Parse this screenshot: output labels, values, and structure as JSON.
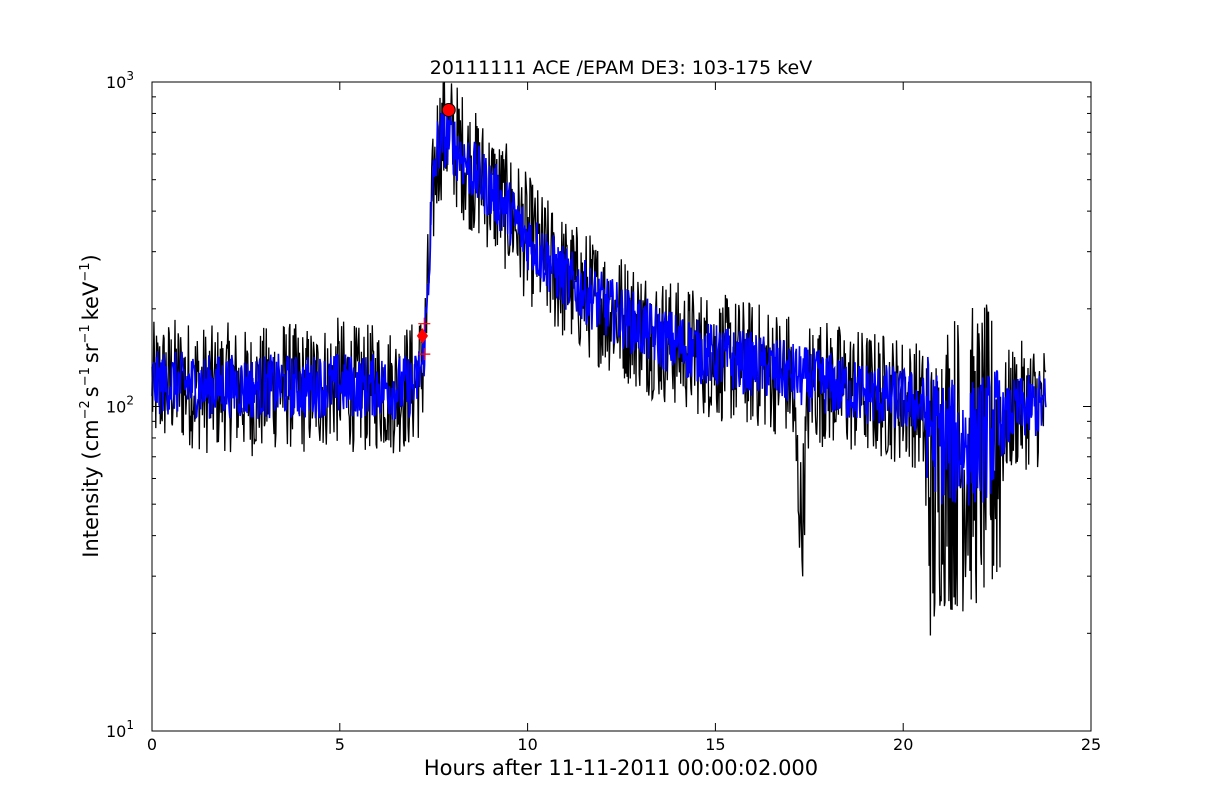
{
  "chart_data": {
    "type": "line",
    "title": "20111111 ACE /EPAM DE3: 103-175 keV",
    "xlabel": "Hours after 11-11-2011 00:00:02.000",
    "ylabel": {
      "prefix": "Intensity (cm",
      "exp1": "−2",
      "mid1": "s",
      "exp2": "−1",
      "mid2": "sr",
      "exp3": "−1",
      "mid3": "keV",
      "exp4": "−1",
      "suffix": ")"
    },
    "xlim": [
      0,
      25
    ],
    "ylim": [
      10,
      1000
    ],
    "yscale": "log",
    "grid": false,
    "legend": "none",
    "x_ticks": [
      0,
      5,
      10,
      15,
      20,
      25
    ],
    "x_tick_labels": [
      "0",
      "5",
      "10",
      "15",
      "20",
      "25"
    ],
    "y_ticks": [
      10,
      100,
      1000
    ],
    "y_tick_labels": {
      "base": "10",
      "exponents": [
        "1",
        "2",
        "3"
      ]
    },
    "series": [
      {
        "color": "#000000",
        "style": "raw",
        "x": [
          0.0,
          0.5,
          1.0,
          1.5,
          2.0,
          2.5,
          3.0,
          3.5,
          4.0,
          4.5,
          5.0,
          5.5,
          6.0,
          6.5,
          7.0,
          7.2,
          7.3,
          7.4,
          7.5,
          7.6,
          7.7,
          7.8,
          7.9,
          8.0,
          8.3,
          8.6,
          9.0,
          9.5,
          10.0,
          10.5,
          11.0,
          11.5,
          12.0,
          12.5,
          13.0,
          13.5,
          14.0,
          14.5,
          15.0,
          15.5,
          16.0,
          16.5,
          17.0,
          17.3,
          17.5,
          18.0,
          18.5,
          19.0,
          19.5,
          20.0,
          20.5,
          20.8,
          21.0,
          21.5,
          22.0,
          22.4,
          22.8,
          23.0,
          23.5,
          23.8
        ],
        "y": [
          115,
          120,
          118,
          112,
          115,
          110,
          112,
          118,
          112,
          115,
          120,
          112,
          115,
          112,
          118,
          130,
          175,
          300,
          480,
          620,
          680,
          700,
          690,
          660,
          590,
          520,
          470,
          400,
          330,
          280,
          245,
          225,
          205,
          190,
          175,
          162,
          155,
          148,
          142,
          138,
          135,
          130,
          125,
          42,
          120,
          118,
          112,
          110,
          108,
          105,
          100,
          45,
          70,
          68,
          70,
          68,
          95,
          100,
          102,
          100
        ]
      },
      {
        "color": "#0000ff",
        "style": "smoothed",
        "x": [
          0.0,
          0.5,
          1.0,
          1.5,
          2.0,
          2.5,
          3.0,
          3.5,
          4.0,
          4.5,
          5.0,
          5.5,
          6.0,
          6.5,
          7.0,
          7.2,
          7.3,
          7.4,
          7.5,
          7.6,
          7.7,
          7.8,
          7.9,
          8.0,
          8.3,
          8.6,
          9.0,
          9.5,
          10.0,
          10.5,
          11.0,
          11.5,
          12.0,
          12.5,
          13.0,
          13.5,
          14.0,
          14.5,
          15.0,
          15.5,
          16.0,
          16.5,
          17.0,
          17.5,
          18.0,
          18.5,
          19.0,
          19.5,
          20.0,
          20.5,
          21.0,
          21.5,
          22.0,
          22.5,
          23.0,
          23.5,
          23.8
        ],
        "y": [
          118,
          118,
          117,
          115,
          116,
          114,
          115,
          116,
          114,
          116,
          117,
          115,
          116,
          114,
          116,
          135,
          180,
          320,
          500,
          630,
          670,
          680,
          670,
          650,
          580,
          520,
          470,
          400,
          330,
          285,
          248,
          226,
          206,
          190,
          176,
          163,
          156,
          148,
          143,
          139,
          135,
          130,
          126,
          121,
          118,
          113,
          110,
          108,
          105,
          101,
          78,
          76,
          78,
          85,
          98,
          100,
          100
        ]
      }
    ],
    "markers": [
      {
        "shape": "circle",
        "color": "#ff0000",
        "x": 7.9,
        "y": 820
      },
      {
        "shape": "diamond",
        "color": "#ff0000",
        "x": 7.2,
        "y": 165
      },
      {
        "shape": "cross",
        "color": "#ff0000",
        "x": 7.25,
        "y": 180
      },
      {
        "shape": "cross",
        "color": "#ff0000",
        "x": 7.25,
        "y": 145
      }
    ]
  }
}
